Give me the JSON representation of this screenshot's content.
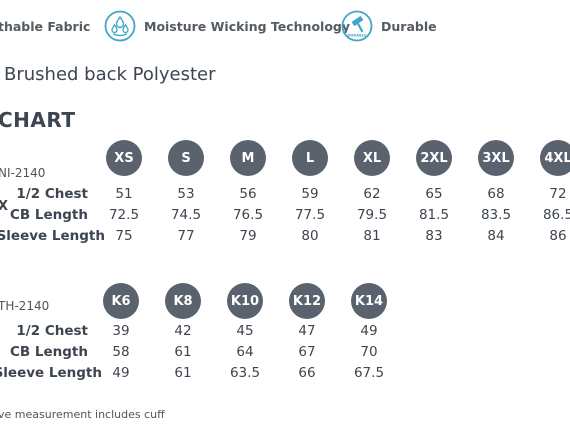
{
  "features": [
    {
      "label": "thable Fabric",
      "icon": "breathable-fabric-icon"
    },
    {
      "label": "Moisture Wicking Technology",
      "icon": "water-drops-icon"
    },
    {
      "label": "Durable",
      "icon": "hammer-icon"
    }
  ],
  "icon_badge_text": "DURABLE",
  "fabric": "Brushed back Polyester",
  "chart_title": "CHART",
  "adult": {
    "code": "NI-2140",
    "side_mark": "X",
    "sizes": [
      "XS",
      "S",
      "M",
      "L",
      "XL",
      "2XL",
      "3XL",
      "4XL"
    ],
    "rows": [
      {
        "label": "1/2 Chest",
        "values": [
          "51",
          "53",
          "56",
          "59",
          "62",
          "65",
          "68",
          "72"
        ]
      },
      {
        "label": "CB Length",
        "values": [
          "72.5",
          "74.5",
          "76.5",
          "77.5",
          "79.5",
          "81.5",
          "83.5",
          "86.5"
        ]
      },
      {
        "label": "Sleeve Length",
        "values": [
          "75",
          "77",
          "79",
          "80",
          "81",
          "83",
          "84",
          "86"
        ]
      }
    ]
  },
  "kids": {
    "code": "TH-2140",
    "sizes": [
      "K6",
      "K8",
      "K10",
      "K12",
      "K14"
    ],
    "rows": [
      {
        "label": "1/2 Chest",
        "values": [
          "39",
          "42",
          "45",
          "47",
          "49"
        ]
      },
      {
        "label": "CB Length",
        "values": [
          "58",
          "61",
          "64",
          "67",
          "70"
        ]
      },
      {
        "label": "Sleeve Length",
        "values": [
          "49",
          "61",
          "63.5",
          "66",
          "67.5"
        ]
      }
    ]
  },
  "colors": {
    "circle": "#59626d",
    "icon": "#3fa6c8",
    "text": "#3d4550"
  },
  "note": "ve measurement includes cuff"
}
